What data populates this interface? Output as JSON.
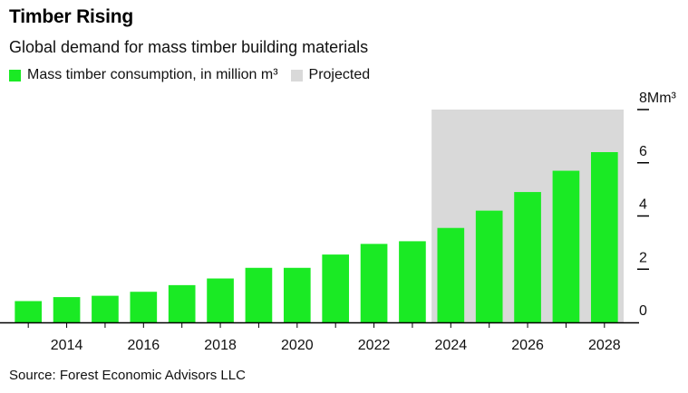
{
  "header": {
    "title": "Timber Rising",
    "subtitle": "Global demand for mass timber building materials"
  },
  "legend": {
    "series_label": "Mass timber consumption, in million m³",
    "projected_label": "Projected"
  },
  "source": "Source: Forest Economic Advisors LLC",
  "colors": {
    "bar": "#1aea24",
    "projected_band": "#d9d9d9",
    "axis": "#000000"
  },
  "chart_data": {
    "type": "bar",
    "categories": [
      "2013",
      "2014",
      "2015",
      "2016",
      "2017",
      "2018",
      "2019",
      "2020",
      "2021",
      "2022",
      "2023",
      "2024",
      "2025",
      "2026",
      "2027",
      "2028"
    ],
    "series": [
      {
        "name": "Mass timber consumption, in million m³",
        "values": [
          0.8,
          0.95,
          1.0,
          1.15,
          1.4,
          1.65,
          2.05,
          2.05,
          2.55,
          2.95,
          3.05,
          3.55,
          4.2,
          4.9,
          5.7,
          6.4
        ]
      }
    ],
    "projected_range": [
      "2024",
      "2028"
    ],
    "x_tick_labels": [
      "2014",
      "2016",
      "2018",
      "2020",
      "2022",
      "2024",
      "2026",
      "2028"
    ],
    "y_ticks": [
      {
        "value": 0,
        "label": "0"
      },
      {
        "value": 2,
        "label": "2"
      },
      {
        "value": 4,
        "label": "4"
      },
      {
        "value": 6,
        "label": "6"
      },
      {
        "value": 8,
        "label": "8Mm³"
      }
    ],
    "ylim": [
      0,
      8
    ],
    "yaxis_position": "right",
    "grid": false,
    "legend_position": "top-left"
  }
}
